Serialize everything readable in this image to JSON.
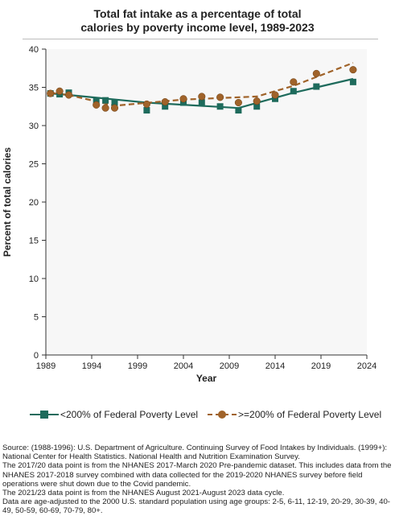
{
  "title": {
    "line1": "Total fat intake as a percentage of total",
    "line2": "calories by poverty income level, 1989-2023"
  },
  "colors": {
    "low_income": "#1e6b5c",
    "high_income": "#a0632a",
    "plot_bg": "#f7f7f7"
  },
  "chart_data": {
    "type": "scatter",
    "title": "Total fat intake as a percentage of total calories by poverty income level, 1989-2023",
    "xlabel": "Year",
    "ylabel": "Percent of total calories",
    "xlim": [
      1989,
      2024
    ],
    "ylim": [
      0,
      40
    ],
    "xticks": [
      1989,
      1994,
      1999,
      2004,
      2009,
      2014,
      2019,
      2024
    ],
    "yticks": [
      0,
      5,
      10,
      15,
      20,
      25,
      30,
      35,
      40
    ],
    "grid": false,
    "legend_position": "bottom",
    "series": [
      {
        "name": "<200% of Federal Poverty Level",
        "marker": "square",
        "color": "#1e6b5c",
        "line_style": "solid",
        "points": [
          {
            "x": 1989.5,
            "y": 34.2
          },
          {
            "x": 1990.5,
            "y": 34.1
          },
          {
            "x": 1991.5,
            "y": 34.3
          },
          {
            "x": 1994.5,
            "y": 33.3
          },
          {
            "x": 1995.5,
            "y": 33.3
          },
          {
            "x": 1996.5,
            "y": 33.0
          },
          {
            "x": 2000.0,
            "y": 32.0
          },
          {
            "x": 2002.0,
            "y": 32.5
          },
          {
            "x": 2004.0,
            "y": 33.0
          },
          {
            "x": 2006.0,
            "y": 33.0
          },
          {
            "x": 2008.0,
            "y": 32.5
          },
          {
            "x": 2010.0,
            "y": 32.0
          },
          {
            "x": 2012.0,
            "y": 32.5
          },
          {
            "x": 2014.0,
            "y": 33.5
          },
          {
            "x": 2016.0,
            "y": 34.5
          },
          {
            "x": 2018.5,
            "y": 35.1
          },
          {
            "x": 2022.5,
            "y": 35.7
          }
        ],
        "trend": [
          {
            "x": 1989.5,
            "y": 34.2
          },
          {
            "x": 1991.5,
            "y": 34.0
          },
          {
            "x": 2000.0,
            "y": 33.0
          },
          {
            "x": 2010.0,
            "y": 32.3
          },
          {
            "x": 2016.0,
            "y": 34.3
          },
          {
            "x": 2022.5,
            "y": 36.1
          }
        ]
      },
      {
        "name": ">=200% of Federal Poverty Level",
        "marker": "circle",
        "color": "#a0632a",
        "line_style": "dashed",
        "points": [
          {
            "x": 1989.5,
            "y": 34.2
          },
          {
            "x": 1990.5,
            "y": 34.5
          },
          {
            "x": 1991.5,
            "y": 34.0
          },
          {
            "x": 1994.5,
            "y": 32.7
          },
          {
            "x": 1995.5,
            "y": 32.3
          },
          {
            "x": 1996.5,
            "y": 32.3
          },
          {
            "x": 2000.0,
            "y": 32.8
          },
          {
            "x": 2002.0,
            "y": 33.1
          },
          {
            "x": 2004.0,
            "y": 33.5
          },
          {
            "x": 2006.0,
            "y": 33.8
          },
          {
            "x": 2008.0,
            "y": 33.7
          },
          {
            "x": 2010.0,
            "y": 33.0
          },
          {
            "x": 2012.0,
            "y": 33.2
          },
          {
            "x": 2014.0,
            "y": 34.0
          },
          {
            "x": 2016.0,
            "y": 35.7
          },
          {
            "x": 2018.5,
            "y": 36.8
          },
          {
            "x": 2022.5,
            "y": 37.3
          }
        ],
        "trend": [
          {
            "x": 1989.5,
            "y": 34.3
          },
          {
            "x": 1991.5,
            "y": 34.0
          },
          {
            "x": 1996.5,
            "y": 32.6
          },
          {
            "x": 2004.0,
            "y": 33.4
          },
          {
            "x": 2012.0,
            "y": 33.8
          },
          {
            "x": 2016.0,
            "y": 35.2
          },
          {
            "x": 2022.5,
            "y": 38.2
          }
        ]
      }
    ]
  },
  "legend": {
    "items": [
      {
        "label": "<200% of Federal Poverty Level"
      },
      {
        "label": ">=200% of Federal Poverty Level"
      }
    ]
  },
  "footnotes": [
    "Source: (1988-1996): U.S. Department of Agriculture. Continuing Survey of Food Intakes by Individuals. (1999+): National Center for Health Statistics. National Health and Nutrition Examination Survey.",
    "The 2017/20 data point is from the NHANES 2017-March 2020 Pre-pandemic dataset. This includes data from the NHANES 2017-2018 survey combined with data collected for the 2019-2020 NHANES survey before field operations were shut down due to the Covid pandemic.",
    "The 2021/23 data point is from the NHANES August 2021-August 2023 data cycle.",
    "Data are age-adjusted to the 2000 U.S. standard population using age groups: 2-5, 6-11, 12-19, 20-29, 30-39, 40-49, 50-59, 60-69, 70-79, 80+."
  ]
}
